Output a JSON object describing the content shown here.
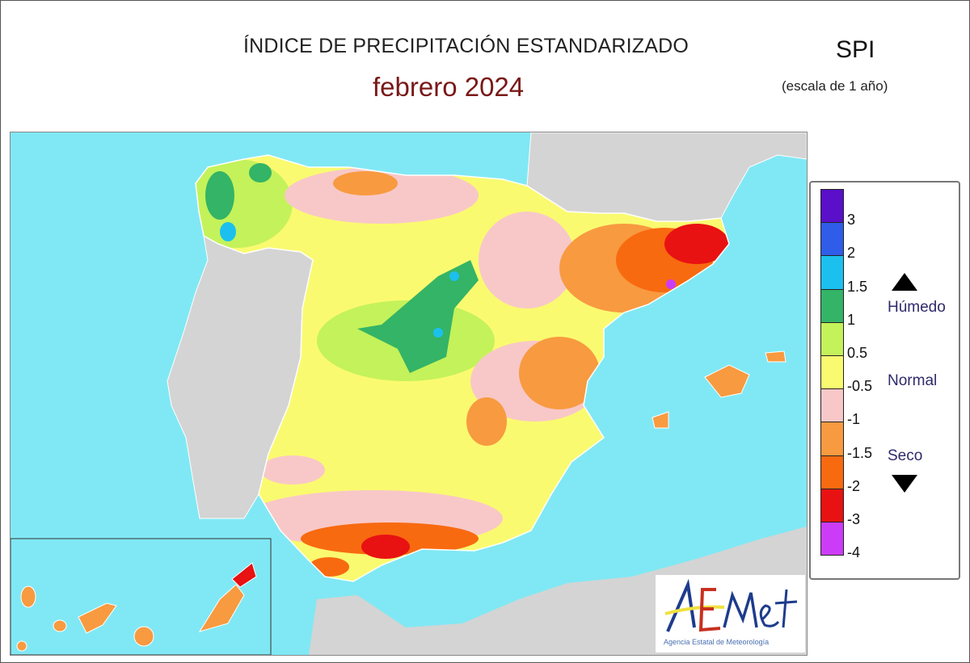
{
  "header": {
    "title": "ÍNDICE DE PRECIPITACIÓN ESTANDARIZADO",
    "subtitle": "febrero  2024",
    "index_abbr": "SPI",
    "scale_note": "(escala de 1 año)"
  },
  "map": {
    "sea_color": "#80e8f4",
    "land_outside_color": "#d4d4d4",
    "regions_shown": [
      "Península Ibérica",
      "Baleares",
      "Canarias"
    ]
  },
  "legend": {
    "colors": [
      "#5a10c8",
      "#2f5ce8",
      "#1cc0ee",
      "#34b466",
      "#c4f25a",
      "#fafa70",
      "#f8c8c8",
      "#f89a40",
      "#f86a10",
      "#e81212",
      "#cc3cf8"
    ],
    "ticks": [
      "3",
      "2",
      "1.5",
      "1",
      "0.5",
      "-0.5",
      "-1",
      "-1.5",
      "-2",
      "-3",
      "-4"
    ],
    "wet_label": "Húmedo",
    "normal_label": "Normal",
    "dry_label": "Seco",
    "up_arrow_icon": "triangle-up",
    "down_arrow_icon": "triangle-down"
  },
  "logo": {
    "name": "AEMet",
    "caption": "Agencia Estatal de Meteorología"
  }
}
